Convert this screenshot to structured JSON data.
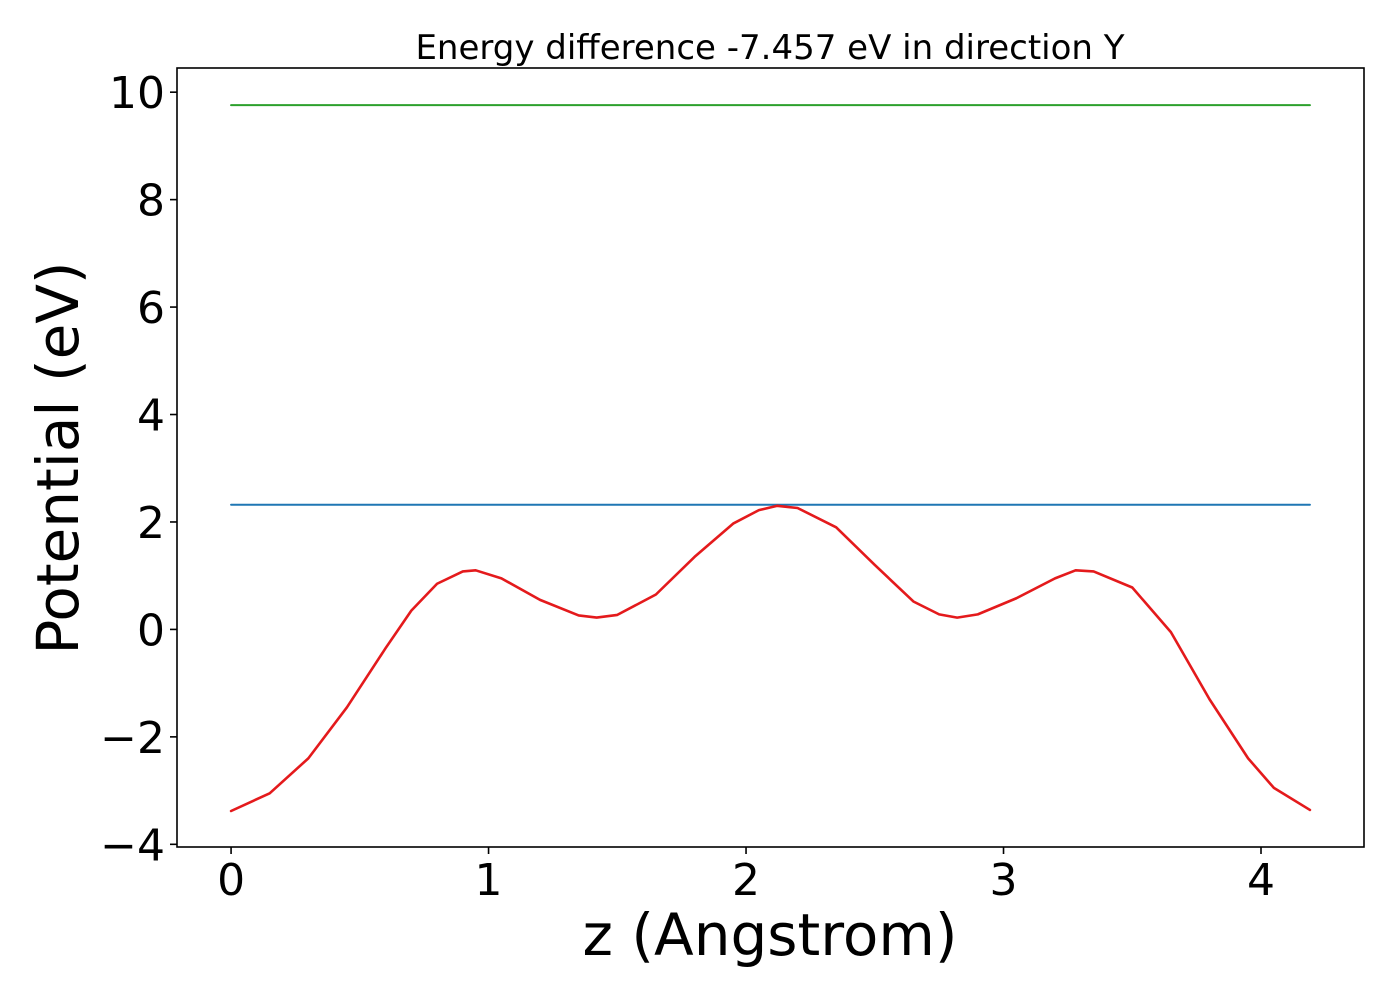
{
  "chart_data": {
    "type": "line",
    "title": "Energy difference -7.457 eV in direction Y",
    "xlabel": "z (Angstrom)",
    "ylabel": "Potential (eV)",
    "xlim": [
      -0.21,
      4.4
    ],
    "ylim": [
      -4.05,
      10.45
    ],
    "xticks": [
      0,
      1,
      2,
      3,
      4
    ],
    "xtick_labels": [
      "0",
      "1",
      "2",
      "3",
      "4"
    ],
    "yticks": [
      -4,
      -2,
      0,
      2,
      4,
      6,
      8,
      10
    ],
    "ytick_labels": [
      "−4",
      "−2",
      "0",
      "2",
      "4",
      "6",
      "8",
      "10"
    ],
    "grid": false,
    "legend": "none",
    "series": [
      {
        "color": "#2ca02c",
        "x": [
          0,
          4.19
        ],
        "values": [
          9.76,
          9.76
        ]
      },
      {
        "color": "#1f77b4",
        "x": [
          0,
          4.19
        ],
        "values": [
          2.32,
          2.32
        ]
      },
      {
        "color": "#e41a1c",
        "x": [
          0,
          0.15,
          0.3,
          0.45,
          0.6,
          0.7,
          0.8,
          0.9,
          0.95,
          1.05,
          1.2,
          1.35,
          1.42,
          1.5,
          1.65,
          1.8,
          1.95,
          2.05,
          2.12,
          2.2,
          2.35,
          2.5,
          2.65,
          2.75,
          2.82,
          2.9,
          3.05,
          3.2,
          3.28,
          3.35,
          3.5,
          3.65,
          3.8,
          3.95,
          4.05,
          4.19
        ],
        "values": [
          -3.38,
          -3.05,
          -2.4,
          -1.45,
          -0.35,
          0.35,
          0.85,
          1.08,
          1.1,
          0.95,
          0.55,
          0.26,
          0.22,
          0.27,
          0.65,
          1.35,
          1.97,
          2.22,
          2.3,
          2.26,
          1.9,
          1.2,
          0.52,
          0.28,
          0.22,
          0.28,
          0.58,
          0.95,
          1.1,
          1.08,
          0.78,
          -0.05,
          -1.3,
          -2.4,
          -2.95,
          -3.36
        ]
      }
    ]
  }
}
